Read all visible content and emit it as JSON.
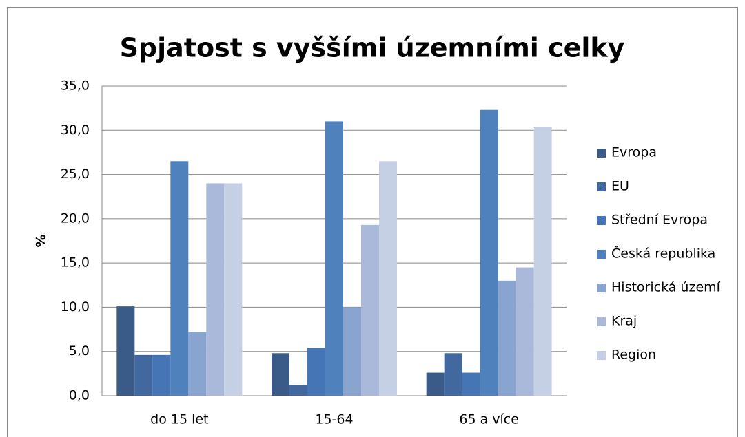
{
  "chart_data": {
    "type": "bar",
    "title": "Spjatost s vyššími územními celky",
    "y_label": "%",
    "categories": [
      "do 15 let",
      "15-64",
      "65 a více"
    ],
    "series": [
      {
        "name": "Evropa",
        "color": "#3a5a87",
        "values": [
          10.1,
          4.8,
          2.6
        ]
      },
      {
        "name": "EU",
        "color": "#4169a0",
        "values": [
          4.6,
          1.2,
          4.8
        ]
      },
      {
        "name": "Střední Evropa",
        "color": "#4575b5",
        "values": [
          4.6,
          5.4,
          2.6
        ]
      },
      {
        "name": "Česká republika",
        "color": "#4f81bd",
        "values": [
          26.5,
          31.0,
          32.3
        ]
      },
      {
        "name": "Historická území",
        "color": "#89a5cf",
        "values": [
          7.2,
          10.0,
          13.0
        ]
      },
      {
        "name": "Kraj",
        "color": "#aab9d9",
        "values": [
          24.0,
          19.3,
          14.5
        ]
      },
      {
        "name": "Region",
        "color": "#c6d0e5",
        "values": [
          24.0,
          26.5,
          30.4
        ]
      }
    ],
    "ylim": [
      0,
      35
    ],
    "yticks": [
      {
        "value": 0,
        "label": "0,0"
      },
      {
        "value": 5,
        "label": "5,0"
      },
      {
        "value": 10,
        "label": "10,0"
      },
      {
        "value": 15,
        "label": "15,0"
      },
      {
        "value": 20,
        "label": "20,0"
      },
      {
        "value": 25,
        "label": "25,0"
      },
      {
        "value": 30,
        "label": "30,0"
      },
      {
        "value": 35,
        "label": "35,0"
      }
    ],
    "grid": true,
    "legend": "right"
  }
}
